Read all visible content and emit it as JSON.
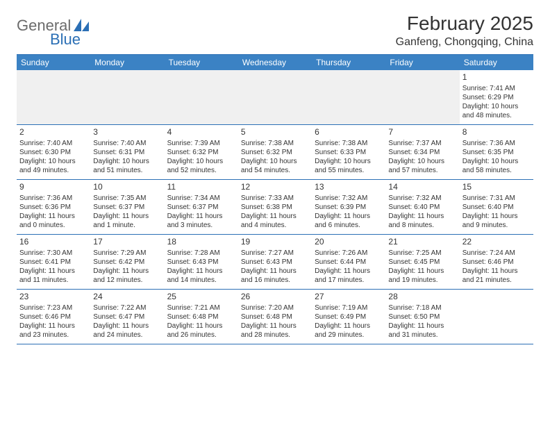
{
  "logo": {
    "text1": "General",
    "text2": "Blue"
  },
  "title": "February 2025",
  "location": "Ganfeng, Chongqing, China",
  "colors": {
    "header_bg": "#3b82c4",
    "header_text": "#ffffff",
    "border": "#2b6fb5",
    "logo_gray": "#6b6b6b",
    "logo_blue": "#2b6fb5",
    "background": "#ffffff",
    "text": "#333333",
    "blank_bg": "#f0f0f0"
  },
  "dayHeaders": [
    "Sunday",
    "Monday",
    "Tuesday",
    "Wednesday",
    "Thursday",
    "Friday",
    "Saturday"
  ],
  "weeks": [
    [
      {
        "blank": true
      },
      {
        "blank": true
      },
      {
        "blank": true
      },
      {
        "blank": true
      },
      {
        "blank": true
      },
      {
        "blank": true
      },
      {
        "day": "1",
        "sunrise": "Sunrise: 7:41 AM",
        "sunset": "Sunset: 6:29 PM",
        "daylight": "Daylight: 10 hours and 48 minutes."
      }
    ],
    [
      {
        "day": "2",
        "sunrise": "Sunrise: 7:40 AM",
        "sunset": "Sunset: 6:30 PM",
        "daylight": "Daylight: 10 hours and 49 minutes."
      },
      {
        "day": "3",
        "sunrise": "Sunrise: 7:40 AM",
        "sunset": "Sunset: 6:31 PM",
        "daylight": "Daylight: 10 hours and 51 minutes."
      },
      {
        "day": "4",
        "sunrise": "Sunrise: 7:39 AM",
        "sunset": "Sunset: 6:32 PM",
        "daylight": "Daylight: 10 hours and 52 minutes."
      },
      {
        "day": "5",
        "sunrise": "Sunrise: 7:38 AM",
        "sunset": "Sunset: 6:32 PM",
        "daylight": "Daylight: 10 hours and 54 minutes."
      },
      {
        "day": "6",
        "sunrise": "Sunrise: 7:38 AM",
        "sunset": "Sunset: 6:33 PM",
        "daylight": "Daylight: 10 hours and 55 minutes."
      },
      {
        "day": "7",
        "sunrise": "Sunrise: 7:37 AM",
        "sunset": "Sunset: 6:34 PM",
        "daylight": "Daylight: 10 hours and 57 minutes."
      },
      {
        "day": "8",
        "sunrise": "Sunrise: 7:36 AM",
        "sunset": "Sunset: 6:35 PM",
        "daylight": "Daylight: 10 hours and 58 minutes."
      }
    ],
    [
      {
        "day": "9",
        "sunrise": "Sunrise: 7:36 AM",
        "sunset": "Sunset: 6:36 PM",
        "daylight": "Daylight: 11 hours and 0 minutes."
      },
      {
        "day": "10",
        "sunrise": "Sunrise: 7:35 AM",
        "sunset": "Sunset: 6:37 PM",
        "daylight": "Daylight: 11 hours and 1 minute."
      },
      {
        "day": "11",
        "sunrise": "Sunrise: 7:34 AM",
        "sunset": "Sunset: 6:37 PM",
        "daylight": "Daylight: 11 hours and 3 minutes."
      },
      {
        "day": "12",
        "sunrise": "Sunrise: 7:33 AM",
        "sunset": "Sunset: 6:38 PM",
        "daylight": "Daylight: 11 hours and 4 minutes."
      },
      {
        "day": "13",
        "sunrise": "Sunrise: 7:32 AM",
        "sunset": "Sunset: 6:39 PM",
        "daylight": "Daylight: 11 hours and 6 minutes."
      },
      {
        "day": "14",
        "sunrise": "Sunrise: 7:32 AM",
        "sunset": "Sunset: 6:40 PM",
        "daylight": "Daylight: 11 hours and 8 minutes."
      },
      {
        "day": "15",
        "sunrise": "Sunrise: 7:31 AM",
        "sunset": "Sunset: 6:40 PM",
        "daylight": "Daylight: 11 hours and 9 minutes."
      }
    ],
    [
      {
        "day": "16",
        "sunrise": "Sunrise: 7:30 AM",
        "sunset": "Sunset: 6:41 PM",
        "daylight": "Daylight: 11 hours and 11 minutes."
      },
      {
        "day": "17",
        "sunrise": "Sunrise: 7:29 AM",
        "sunset": "Sunset: 6:42 PM",
        "daylight": "Daylight: 11 hours and 12 minutes."
      },
      {
        "day": "18",
        "sunrise": "Sunrise: 7:28 AM",
        "sunset": "Sunset: 6:43 PM",
        "daylight": "Daylight: 11 hours and 14 minutes."
      },
      {
        "day": "19",
        "sunrise": "Sunrise: 7:27 AM",
        "sunset": "Sunset: 6:43 PM",
        "daylight": "Daylight: 11 hours and 16 minutes."
      },
      {
        "day": "20",
        "sunrise": "Sunrise: 7:26 AM",
        "sunset": "Sunset: 6:44 PM",
        "daylight": "Daylight: 11 hours and 17 minutes."
      },
      {
        "day": "21",
        "sunrise": "Sunrise: 7:25 AM",
        "sunset": "Sunset: 6:45 PM",
        "daylight": "Daylight: 11 hours and 19 minutes."
      },
      {
        "day": "22",
        "sunrise": "Sunrise: 7:24 AM",
        "sunset": "Sunset: 6:46 PM",
        "daylight": "Daylight: 11 hours and 21 minutes."
      }
    ],
    [
      {
        "day": "23",
        "sunrise": "Sunrise: 7:23 AM",
        "sunset": "Sunset: 6:46 PM",
        "daylight": "Daylight: 11 hours and 23 minutes."
      },
      {
        "day": "24",
        "sunrise": "Sunrise: 7:22 AM",
        "sunset": "Sunset: 6:47 PM",
        "daylight": "Daylight: 11 hours and 24 minutes."
      },
      {
        "day": "25",
        "sunrise": "Sunrise: 7:21 AM",
        "sunset": "Sunset: 6:48 PM",
        "daylight": "Daylight: 11 hours and 26 minutes."
      },
      {
        "day": "26",
        "sunrise": "Sunrise: 7:20 AM",
        "sunset": "Sunset: 6:48 PM",
        "daylight": "Daylight: 11 hours and 28 minutes."
      },
      {
        "day": "27",
        "sunrise": "Sunrise: 7:19 AM",
        "sunset": "Sunset: 6:49 PM",
        "daylight": "Daylight: 11 hours and 29 minutes."
      },
      {
        "day": "28",
        "sunrise": "Sunrise: 7:18 AM",
        "sunset": "Sunset: 6:50 PM",
        "daylight": "Daylight: 11 hours and 31 minutes."
      },
      {
        "blank": true
      }
    ]
  ]
}
